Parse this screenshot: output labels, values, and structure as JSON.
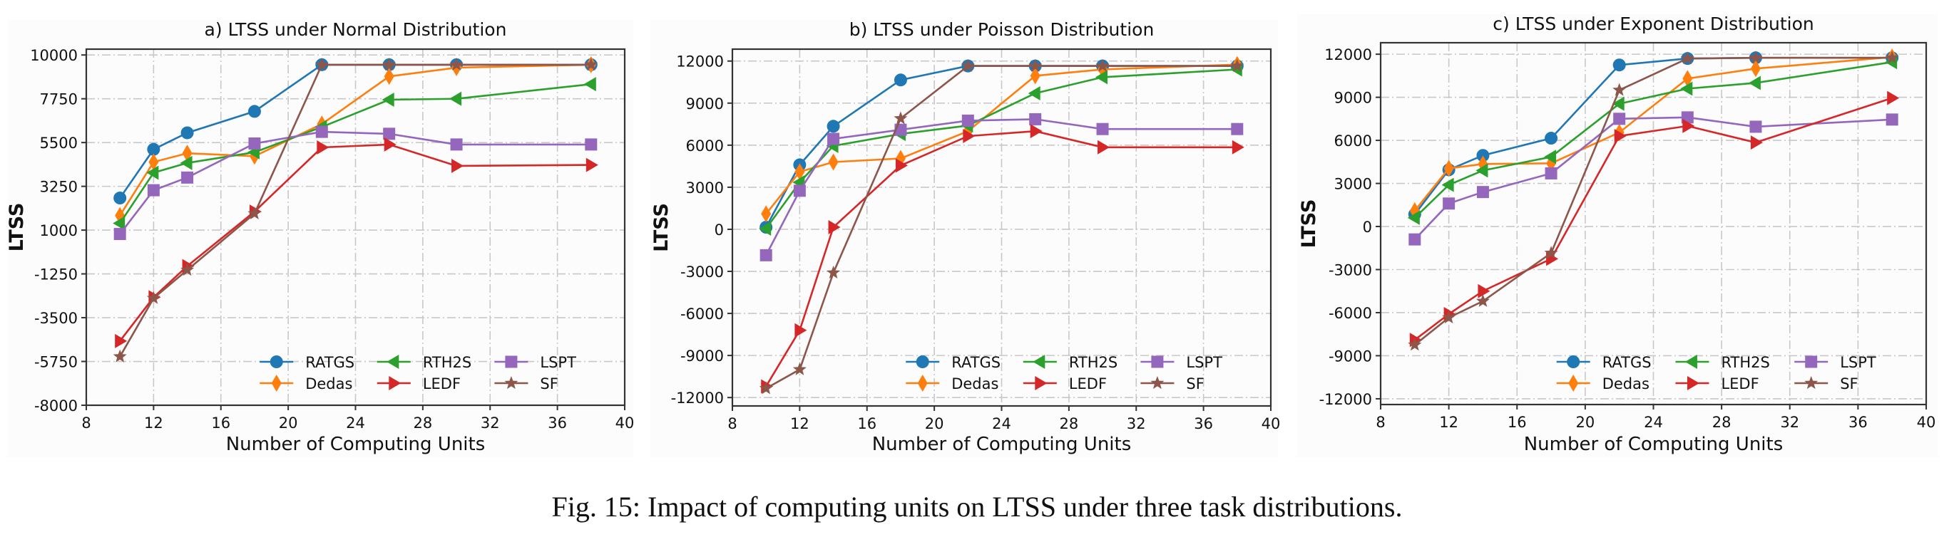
{
  "caption": "Fig. 15: Impact of computing units on LTSS under three task distributions.",
  "series_styles": [
    {
      "name": "RATGS",
      "color": "#1f77b4",
      "marker": "circle"
    },
    {
      "name": "Dedas",
      "color": "#ff7f0e",
      "marker": "thin-diamond"
    },
    {
      "name": "RTH2S",
      "color": "#2ca02c",
      "marker": "triangle-left"
    },
    {
      "name": "LEDF",
      "color": "#d62728",
      "marker": "triangle-right"
    },
    {
      "name": "LSPT",
      "color": "#9467bd",
      "marker": "square"
    },
    {
      "name": "SF",
      "color": "#8c564b",
      "marker": "star"
    }
  ],
  "legend_order": [
    "RATGS",
    "Dedas",
    "RTH2S",
    "LEDF",
    "LSPT",
    "SF"
  ],
  "chart_data": [
    {
      "type": "line",
      "title": "a) LTSS under Normal Distribution",
      "xlabel": "Number of Computing Units",
      "ylabel": "LTSS",
      "xlim": [
        8,
        40
      ],
      "ylim": [
        -8000,
        10300
      ],
      "xticks": [
        8,
        12,
        16,
        20,
        24,
        28,
        32,
        36,
        40
      ],
      "yticks": [
        -8000,
        -5750,
        -3500,
        -1250,
        1000,
        3250,
        5500,
        7750,
        10000
      ],
      "grid": true,
      "legend": "lower-right",
      "x": [
        10,
        12,
        14,
        18,
        22,
        26,
        30,
        38
      ],
      "series": [
        {
          "name": "RATGS",
          "values": [
            2650,
            5150,
            6000,
            7100,
            9500,
            9500,
            9500,
            9500
          ]
        },
        {
          "name": "Dedas",
          "values": [
            1750,
            4500,
            4950,
            4800,
            6450,
            8900,
            9350,
            9500
          ]
        },
        {
          "name": "RTH2S",
          "values": [
            1350,
            3950,
            4450,
            5000,
            6300,
            7700,
            7750,
            8500
          ]
        },
        {
          "name": "LEDF",
          "values": [
            -4700,
            -2450,
            -850,
            1950,
            5250,
            5400,
            4300,
            4350
          ]
        },
        {
          "name": "LSPT",
          "values": [
            800,
            3050,
            3700,
            5450,
            6050,
            5950,
            5400,
            5400
          ]
        },
        {
          "name": "SF",
          "values": [
            -5500,
            -2500,
            -1050,
            1850,
            9500,
            9500,
            9500,
            9500
          ]
        }
      ]
    },
    {
      "type": "line",
      "title": "b) LTSS under Poisson Distribution",
      "xlabel": "Number of Computing Units",
      "ylabel": "LTSS",
      "xlim": [
        8,
        40
      ],
      "ylim": [
        -12600,
        12850
      ],
      "xticks": [
        8,
        12,
        16,
        20,
        24,
        28,
        32,
        36,
        40
      ],
      "yticks": [
        -12000,
        -9000,
        -6000,
        -3000,
        0,
        3000,
        6000,
        9000,
        12000
      ],
      "grid": true,
      "legend": "lower-right",
      "x": [
        10,
        12,
        14,
        18,
        22,
        26,
        30,
        38
      ],
      "series": [
        {
          "name": "RATGS",
          "values": [
            150,
            4600,
            7350,
            10650,
            11650,
            11650,
            11650,
            11650
          ]
        },
        {
          "name": "Dedas",
          "values": [
            1100,
            4100,
            4800,
            5050,
            7000,
            10950,
            11400,
            11750
          ]
        },
        {
          "name": "RTH2S",
          "values": [
            50,
            3350,
            5950,
            6800,
            7400,
            9700,
            10850,
            11400
          ]
        },
        {
          "name": "LEDF",
          "values": [
            -11200,
            -7200,
            150,
            4550,
            6650,
            7000,
            5850,
            5850
          ]
        },
        {
          "name": "LSPT",
          "values": [
            -1850,
            2750,
            6450,
            7100,
            7750,
            7850,
            7150,
            7150
          ]
        },
        {
          "name": "SF",
          "values": [
            -11350,
            -10000,
            -3100,
            7900,
            11650,
            11650,
            11650,
            11650
          ]
        }
      ]
    },
    {
      "type": "line",
      "title": "c) LTSS under Exponent Distribution",
      "xlabel": "Number of Computing Units",
      "ylabel": "LTSS",
      "xlim": [
        8,
        40
      ],
      "ylim": [
        -12400,
        12800
      ],
      "xticks": [
        8,
        12,
        16,
        20,
        24,
        28,
        32,
        36,
        40
      ],
      "yticks": [
        -12000,
        -9000,
        -6000,
        -3000,
        0,
        3000,
        6000,
        9000,
        12000
      ],
      "grid": true,
      "legend": "lower-right",
      "x": [
        10,
        12,
        14,
        18,
        22,
        26,
        30,
        38
      ],
      "series": [
        {
          "name": "RATGS",
          "values": [
            850,
            3950,
            4950,
            6150,
            11250,
            11700,
            11750,
            11750
          ]
        },
        {
          "name": "Dedas",
          "values": [
            1100,
            4050,
            4350,
            4400,
            6550,
            10300,
            11000,
            11800
          ]
        },
        {
          "name": "RTH2S",
          "values": [
            600,
            2900,
            3900,
            4850,
            8550,
            9600,
            10000,
            11450
          ]
        },
        {
          "name": "LEDF",
          "values": [
            -7900,
            -6100,
            -4500,
            -2250,
            6300,
            7000,
            5850,
            8950
          ]
        },
        {
          "name": "LSPT",
          "values": [
            -900,
            1600,
            2400,
            3700,
            7500,
            7600,
            6950,
            7450
          ]
        },
        {
          "name": "SF",
          "values": [
            -8250,
            -6350,
            -5200,
            -1850,
            9500,
            11700,
            11750,
            11750
          ]
        }
      ]
    }
  ]
}
